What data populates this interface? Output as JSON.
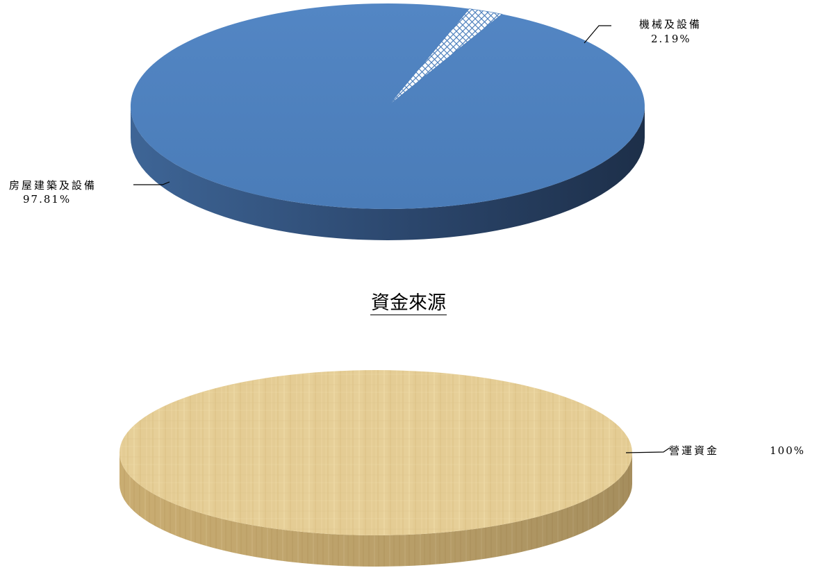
{
  "section_title": "資金來源",
  "chart_data": [
    {
      "type": "pie",
      "title": "",
      "three_d": true,
      "slices": [
        {
          "label": "房屋建築及設備",
          "value": 97.81,
          "value_text": "97.81%",
          "color": "#4f81bd",
          "fill": "solid"
        },
        {
          "label": "機械及設備",
          "value": 2.19,
          "value_text": "2.19%",
          "color": "#4f81bd",
          "fill": "crosshatch"
        }
      ]
    },
    {
      "type": "pie",
      "title": "",
      "three_d": true,
      "slices": [
        {
          "label": "營運資金",
          "value": 100,
          "value_text": "100%",
          "color": "#e2c88f",
          "fill": "wood-texture"
        }
      ]
    }
  ]
}
